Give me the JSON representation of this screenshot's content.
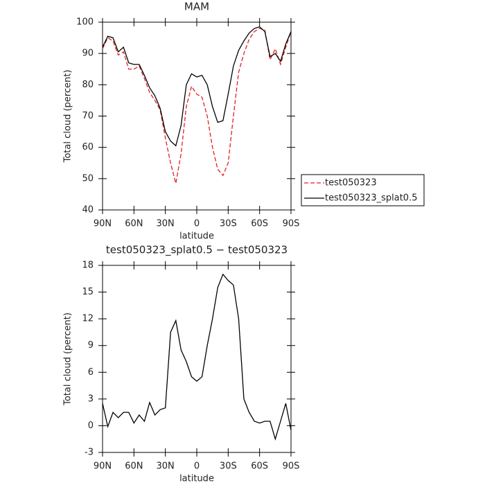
{
  "chart_data": [
    {
      "type": "line",
      "title": "MAM",
      "xlabel": "latitude",
      "ylabel": "Total cloud (percent)",
      "x": [
        90,
        85,
        80,
        75,
        70,
        65,
        60,
        55,
        50,
        45,
        40,
        35,
        30,
        25,
        20,
        15,
        10,
        5,
        0,
        -5,
        -10,
        -15,
        -20,
        -25,
        -30,
        -35,
        -40,
        -45,
        -50,
        -55,
        -60,
        -65,
        -70,
        -75,
        -80,
        -85,
        -90
      ],
      "xlim": [
        90,
        -90
      ],
      "xticks": [
        {
          "value": 90,
          "label": "90N"
        },
        {
          "value": 60,
          "label": "60N"
        },
        {
          "value": 30,
          "label": "30N"
        },
        0,
        {
          "value": -30,
          "label": "30S"
        },
        {
          "value": -60,
          "label": "60S"
        },
        {
          "value": -90,
          "label": "90S"
        }
      ],
      "ylim": [
        40,
        100
      ],
      "yticks": [
        40,
        50,
        60,
        70,
        80,
        90,
        100
      ],
      "series": [
        {
          "name": "test050323",
          "color": "#e02020",
          "linestyle": "dashed",
          "values": [
            91.5,
            95,
            94,
            89.5,
            90.5,
            85,
            85,
            86,
            82,
            77.5,
            75,
            72,
            63,
            55,
            48.5,
            58,
            73,
            79.5,
            77,
            76,
            70,
            60,
            53,
            51,
            55,
            70,
            84,
            90,
            94.5,
            97,
            98,
            97.5,
            88,
            91.5,
            86.5,
            92,
            97
          ]
        },
        {
          "name": "test050323_splat0.5",
          "color": "#000000",
          "linestyle": "solid",
          "values": [
            92,
            95.5,
            95,
            90.5,
            92,
            87,
            86.5,
            86.5,
            83,
            79,
            76.5,
            72.5,
            65,
            62,
            60.5,
            67,
            80,
            83.5,
            82.5,
            83,
            80,
            73,
            68,
            68.5,
            77,
            86,
            91,
            94,
            96.5,
            98,
            98.5,
            97,
            89,
            90,
            87.5,
            93,
            97
          ]
        }
      ]
    },
    {
      "type": "line",
      "title": "test050323_splat0.5 − test050323",
      "xlabel": "latitude",
      "ylabel": "Total cloud (percent)",
      "x": [
        90,
        85,
        80,
        75,
        70,
        65,
        60,
        55,
        50,
        45,
        40,
        35,
        30,
        25,
        20,
        15,
        10,
        5,
        0,
        -5,
        -10,
        -15,
        -20,
        -25,
        -30,
        -35,
        -40,
        -45,
        -50,
        -55,
        -60,
        -65,
        -70,
        -75,
        -80,
        -85,
        -90
      ],
      "xlim": [
        90,
        -90
      ],
      "xticks": [
        {
          "value": 90,
          "label": "90N"
        },
        {
          "value": 60,
          "label": "60N"
        },
        {
          "value": 30,
          "label": "30N"
        },
        0,
        {
          "value": -30,
          "label": "30S"
        },
        {
          "value": -60,
          "label": "60S"
        },
        {
          "value": -90,
          "label": "90S"
        }
      ],
      "ylim": [
        -3,
        18
      ],
      "yticks": [
        -3,
        0,
        3,
        6,
        9,
        12,
        15,
        18
      ],
      "series": [
        {
          "color": "#000000",
          "linestyle": "solid",
          "values": [
            2.5,
            -0.1,
            1.5,
            0.9,
            1.5,
            1.5,
            0.3,
            1.2,
            0.5,
            2.6,
            1.2,
            1.8,
            2,
            10.5,
            11.8,
            8.5,
            7.2,
            5.5,
            5,
            5.5,
            9,
            12,
            15.5,
            17,
            16.3,
            15.8,
            12,
            3,
            1.5,
            0.5,
            0.3,
            0.5,
            0.5,
            -1.5,
            0.5,
            2.5,
            -0.5
          ]
        }
      ]
    }
  ]
}
